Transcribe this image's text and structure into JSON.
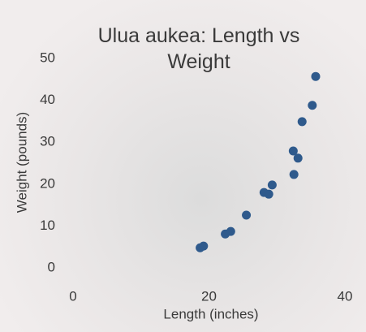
{
  "chart_data": {
    "type": "scatter",
    "title": "Ulua aukea: Length vs Weight",
    "x_label": "Length (inches)",
    "y_label": "Weight (pounds)",
    "x": [
      18.7,
      19.2,
      22.4,
      23.2,
      25.5,
      28.1,
      28.8,
      29.3,
      32.4,
      33.1,
      32.5,
      33.7,
      35.2,
      35.7
    ],
    "values": [
      4.8,
      5.2,
      8.1,
      8.7,
      12.6,
      18.0,
      17.6,
      19.8,
      27.9,
      26.2,
      22.3,
      34.9,
      38.8,
      45.7
    ],
    "color": "#2f5a8c",
    "xlim": [
      0,
      40
    ],
    "xticks": [
      0,
      20,
      40
    ],
    "ylim": [
      0,
      50
    ],
    "yticks": [
      0,
      10,
      20,
      30,
      40,
      50
    ]
  }
}
